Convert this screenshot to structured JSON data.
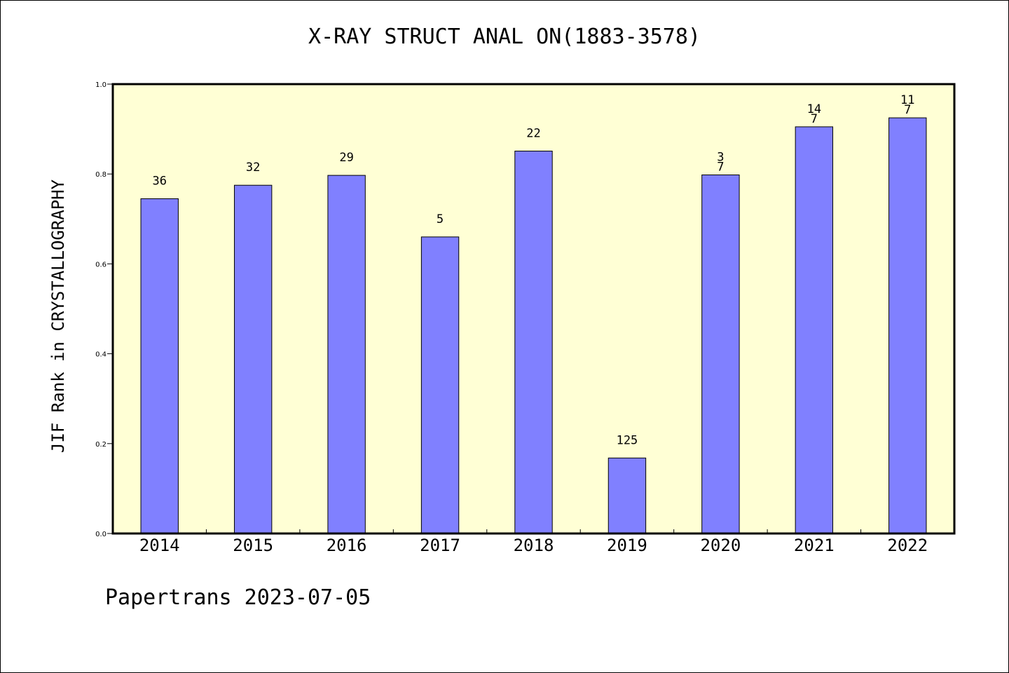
{
  "chart_data": {
    "type": "bar",
    "title": "X-RAY STRUCT ANAL ON(1883-3578)",
    "ylabel": "JIF Rank in CRYSTALLOGRAPHY",
    "xlabel": "",
    "ylim": [
      0,
      1.0
    ],
    "yticks": [
      "0.0",
      "0.2",
      "0.4",
      "0.6",
      "0.8",
      "1.0"
    ],
    "categories": [
      "2014",
      "2015",
      "2016",
      "2017",
      "2018",
      "2019",
      "2020",
      "2021",
      "2022"
    ],
    "values": [
      0.745,
      0.775,
      0.797,
      0.66,
      0.851,
      0.168,
      0.798,
      0.905,
      0.925
    ],
    "bar_labels": [
      [
        "36"
      ],
      [
        "32"
      ],
      [
        "29"
      ],
      [
        "5"
      ],
      [
        "22"
      ],
      [
        "125"
      ],
      [
        "3",
        "7"
      ],
      [
        "14",
        "7"
      ],
      [
        "11",
        "7"
      ]
    ],
    "plot_background": "#ffffd5",
    "bar_color": "#8080ff"
  },
  "footer": "Papertrans 2023-07-05"
}
